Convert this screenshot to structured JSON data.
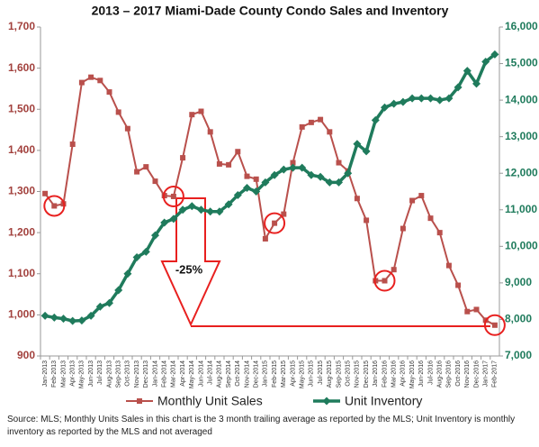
{
  "chart_data": {
    "type": "line",
    "title": "2013 – 2017 Miami-Dade County Condo Sales and Inventory",
    "categories": [
      "Jan-2013",
      "Feb-2013",
      "Mar-2013",
      "Apr-2013",
      "May-2013",
      "Jun-2013",
      "Jul-2013",
      "Aug-2013",
      "Sep-2013",
      "Oct-2013",
      "Nov-2013",
      "Dec-2013",
      "Jan-2014",
      "Feb-2014",
      "Mar-2014",
      "Apr-2014",
      "May-2014",
      "Jun-2014",
      "Jul-2014",
      "Aug-2014",
      "Sep-2014",
      "Oct-2014",
      "Nov-2014",
      "Dec-2014",
      "Jan-2015",
      "Feb-2015",
      "Mar-2015",
      "Apr-2015",
      "May-2015",
      "Jun-2015",
      "Jul-2015",
      "Aug-2015",
      "Sep-2015",
      "Oct-2015",
      "Nov-2015",
      "Dec-2015",
      "Jan-2016",
      "Feb-2016",
      "Mar-2016",
      "Apr-2016",
      "May-2016",
      "Jun-2016",
      "Jul-2016",
      "Aug-2016",
      "Sep-2016",
      "Oct-2016",
      "Nov-2016",
      "Dec-2016",
      "Jan-2017",
      "Feb-2017"
    ],
    "series": [
      {
        "name": "Monthly Unit Sales",
        "color": "#b9504c",
        "axis": "y",
        "marker": "square",
        "values": [
          1295,
          1265,
          1270,
          1415,
          1565,
          1578,
          1570,
          1542,
          1493,
          1453,
          1348,
          1360,
          1325,
          1290,
          1288,
          1382,
          1487,
          1495,
          1445,
          1367,
          1365,
          1397,
          1337,
          1330,
          1185,
          1223,
          1245,
          1370,
          1457,
          1468,
          1475,
          1445,
          1370,
          1350,
          1283,
          1230,
          1083,
          1083,
          1110,
          1210,
          1278,
          1290,
          1235,
          1200,
          1120,
          1072,
          1008,
          1013,
          987,
          975
        ]
      },
      {
        "name": "Unit Inventory",
        "color": "#1f7b5c",
        "axis": "y2",
        "marker": "diamond",
        "values": [
          8100,
          8050,
          8020,
          7960,
          7970,
          8100,
          8350,
          8450,
          8800,
          9250,
          9700,
          9850,
          10300,
          10650,
          10750,
          11000,
          11100,
          11000,
          10950,
          10950,
          11150,
          11400,
          11600,
          11500,
          11750,
          11950,
          12100,
          12150,
          12150,
          11950,
          11900,
          11750,
          11750,
          12000,
          12800,
          12600,
          13450,
          13800,
          13900,
          13950,
          14050,
          14050,
          14050,
          14000,
          14050,
          14350,
          14800,
          14450,
          15050,
          15250
        ]
      }
    ],
    "ylim": [
      900,
      1700
    ],
    "yticks": [
      900,
      {
        "value": 1000,
        "label": "1,000"
      },
      {
        "value": 1100,
        "label": "1,100"
      },
      {
        "value": 1200,
        "label": "1,200"
      },
      {
        "value": 1300,
        "label": "1,300"
      },
      {
        "value": 1400,
        "label": "1,400"
      },
      {
        "value": 1500,
        "label": "1,500"
      },
      {
        "value": 1600,
        "label": "1,600"
      },
      {
        "value": 1700,
        "label": "1,700"
      }
    ],
    "y2lim": [
      7000,
      16000
    ],
    "y2ticks": [
      {
        "value": 7000,
        "label": "7,000"
      },
      {
        "value": 8000,
        "label": "8,000"
      },
      {
        "value": 9000,
        "label": "9,000"
      },
      {
        "value": 10000,
        "label": "10,000"
      },
      {
        "value": 11000,
        "label": "11,000"
      },
      {
        "value": 12000,
        "label": "12,000"
      },
      {
        "value": 13000,
        "label": "13,000"
      },
      {
        "value": 14000,
        "label": "14,000"
      },
      {
        "value": 15000,
        "label": "15,000"
      },
      {
        "value": 16000,
        "label": "16,000"
      }
    ],
    "annotation": "-25%",
    "footnote": "Source: MLS; Monthly Units Sales in this chart is the 3 month trailing average as reported by the MLS; Unit Inventory is monthly inventory as reported by the MLS and not averaged",
    "legend": "bottom",
    "grid": false
  }
}
